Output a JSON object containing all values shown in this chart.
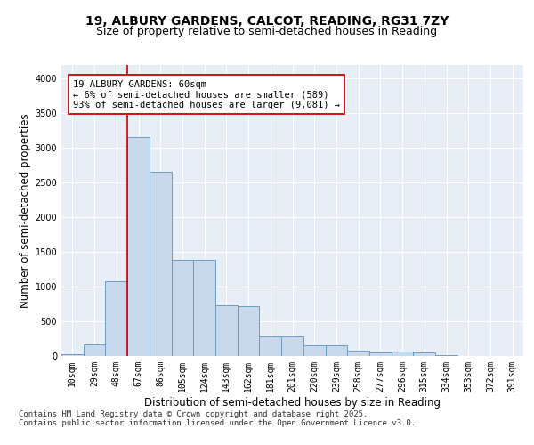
{
  "title_line1": "19, ALBURY GARDENS, CALCOT, READING, RG31 7ZY",
  "title_line2": "Size of property relative to semi-detached houses in Reading",
  "xlabel": "Distribution of semi-detached houses by size in Reading",
  "ylabel": "Number of semi-detached properties",
  "categories": [
    "10sqm",
    "29sqm",
    "48sqm",
    "67sqm",
    "86sqm",
    "105sqm",
    "124sqm",
    "143sqm",
    "162sqm",
    "181sqm",
    "201sqm",
    "220sqm",
    "239sqm",
    "258sqm",
    "277sqm",
    "296sqm",
    "315sqm",
    "334sqm",
    "353sqm",
    "372sqm",
    "391sqm"
  ],
  "values": [
    20,
    170,
    1080,
    3150,
    2650,
    1380,
    1380,
    730,
    720,
    280,
    280,
    155,
    160,
    75,
    55,
    60,
    50,
    15,
    5,
    3,
    2
  ],
  "bar_color": "#c9d9eb",
  "bar_edge_color": "#6a9ec5",
  "vline_x": 2.5,
  "vline_color": "#cc0000",
  "annotation_text": "19 ALBURY GARDENS: 60sqm\n← 6% of semi-detached houses are smaller (589)\n93% of semi-detached houses are larger (9,081) →",
  "annotation_box_color": "#ffffff",
  "annotation_box_edge": "#cc0000",
  "footer_line1": "Contains HM Land Registry data © Crown copyright and database right 2025.",
  "footer_line2": "Contains public sector information licensed under the Open Government Licence v3.0.",
  "ylim": [
    0,
    4200
  ],
  "yticks": [
    0,
    500,
    1000,
    1500,
    2000,
    2500,
    3000,
    3500,
    4000
  ],
  "bg_color": "#e8eef6",
  "fig_bg_color": "#ffffff",
  "title_fontsize": 10,
  "subtitle_fontsize": 9,
  "axis_label_fontsize": 8.5,
  "tick_fontsize": 7,
  "footer_fontsize": 6.5,
  "ann_fontsize": 7.5
}
